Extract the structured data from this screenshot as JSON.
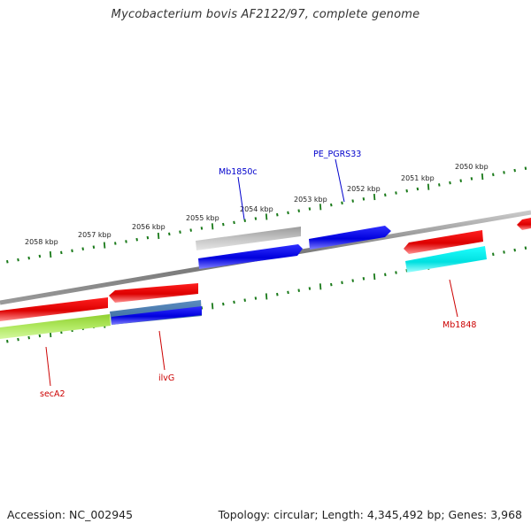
{
  "title": "Mycobacterium bovis AF2122/97, complete genome",
  "accession": "Accession: NC_002945",
  "summary": "Topology: circular; Length: 4,345,492 bp; Genes: 3,968",
  "colors": {
    "backbone": "#808080",
    "tick": "#1a7a1a",
    "forward_gene": "#0000dd",
    "reverse_gene": "#dd0000",
    "grey_gene": "#b0b0b0",
    "steel_gene": "#4a7fb0",
    "cyan_gene": "#00e5e5",
    "lime_gene": "#a8e040",
    "blue_label": "#0000cc",
    "red_label": "#cc0000"
  },
  "scale_labels": [
    "2058 kbp",
    "2057 kbp",
    "2056 kbp",
    "2055 kbp",
    "2054 kbp",
    "2053 kbp",
    "2052 kbp",
    "2051 kbp",
    "2050 kbp"
  ],
  "gene_labels": {
    "mb1850c": "Mb1850c",
    "pe_pgrs33": "PE_PGRS33",
    "seca2": "secA2",
    "ilvg": "ilvG",
    "mb1848": "Mb1848"
  }
}
